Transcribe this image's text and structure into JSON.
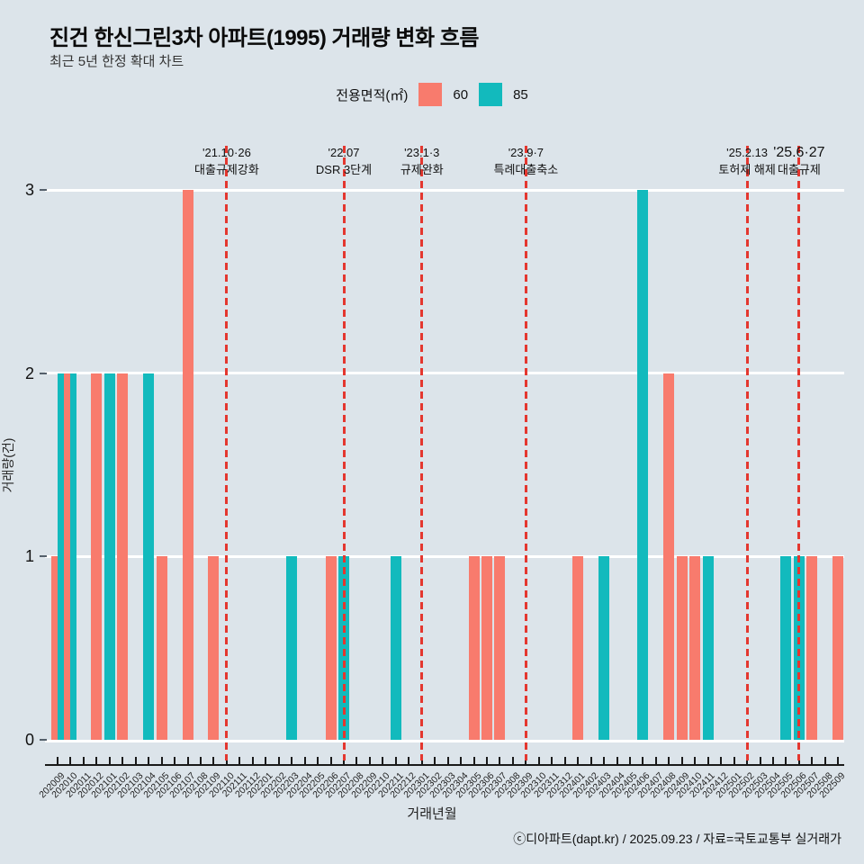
{
  "title": "진건 한신그린3차 아파트(1995) 거래량 변화 흐름",
  "subtitle": "최근 5년 한정 확대 차트",
  "legend": {
    "title": "전용면적(㎡)",
    "items": [
      {
        "label": "60",
        "color": "#f87b6d"
      },
      {
        "label": "85",
        "color": "#12babd"
      }
    ]
  },
  "chart_data": {
    "type": "bar",
    "title": "진건 한신그린3차 아파트(1995) 거래량 변화 흐름",
    "xlabel": "거래년월",
    "ylabel": "거래량(건)",
    "ylim": [
      0,
      3
    ],
    "yticks": [
      0,
      1,
      2,
      3
    ],
    "grid": true,
    "legend_position": "top",
    "gridline_color": "#ffffff",
    "event_line_color": "#e4372f",
    "categories": [
      "202009",
      "202010",
      "202011",
      "202012",
      "202101",
      "202102",
      "202103",
      "202104",
      "202105",
      "202106",
      "202107",
      "202108",
      "202109",
      "202110",
      "202111",
      "202112",
      "202201",
      "202202",
      "202203",
      "202204",
      "202205",
      "202206",
      "202207",
      "202208",
      "202209",
      "202210",
      "202211",
      "202212",
      "202301",
      "202302",
      "202303",
      "202304",
      "202305",
      "202306",
      "202307",
      "202308",
      "202309",
      "202310",
      "202311",
      "202312",
      "202401",
      "202402",
      "202403",
      "202404",
      "202405",
      "202406",
      "202407",
      "202408",
      "202409",
      "202410",
      "202411",
      "202412",
      "202501",
      "202502",
      "202503",
      "202504",
      "202505",
      "202506",
      "202507",
      "202508",
      "202509"
    ],
    "series": [
      {
        "name": "60",
        "color": "#f87b6d",
        "values": [
          1,
          2,
          0,
          2,
          0,
          2,
          0,
          0,
          1,
          0,
          3,
          0,
          1,
          0,
          0,
          0,
          0,
          0,
          0,
          0,
          0,
          1,
          0,
          0,
          0,
          0,
          0,
          0,
          0,
          0,
          0,
          0,
          1,
          1,
          1,
          0,
          0,
          0,
          0,
          0,
          1,
          0,
          0,
          0,
          0,
          0,
          0,
          2,
          1,
          1,
          0,
          0,
          0,
          0,
          0,
          0,
          0,
          0,
          1,
          0,
          1
        ]
      },
      {
        "name": "85",
        "color": "#12babd",
        "values": [
          2,
          2,
          0,
          0,
          2,
          0,
          0,
          2,
          0,
          0,
          0,
          0,
          0,
          0,
          0,
          0,
          0,
          0,
          1,
          0,
          0,
          0,
          1,
          0,
          0,
          0,
          1,
          0,
          0,
          0,
          0,
          0,
          0,
          0,
          0,
          0,
          0,
          0,
          0,
          0,
          0,
          0,
          1,
          0,
          0,
          3,
          0,
          0,
          0,
          0,
          1,
          0,
          0,
          0,
          0,
          0,
          1,
          1,
          0,
          0,
          0
        ]
      }
    ],
    "events": [
      {
        "date": "'21.10·26",
        "label": "대출규제강화",
        "month": "202110"
      },
      {
        "date": "'22.07",
        "label": "DSR 3단계",
        "month": "202207"
      },
      {
        "date": "'23.1·3",
        "label": "규제완화",
        "month": "202301"
      },
      {
        "date": "'23.9·7",
        "label": "특례대출축소",
        "month": "202309"
      },
      {
        "date": "'25.2.13",
        "label": "토허제 해제",
        "month": "202502"
      },
      {
        "date": "'25.6·27",
        "label": "대출규제",
        "month": "202506"
      }
    ]
  },
  "footer": "ⓒ디아파트(dapt.kr) / 2025.09.23 / 자료=국토교통부 실거래가"
}
